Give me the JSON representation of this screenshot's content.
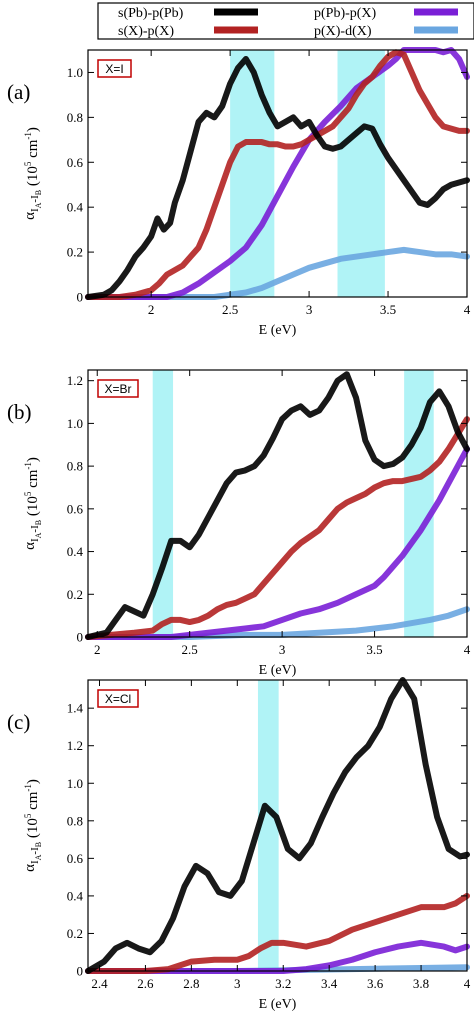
{
  "legend": [
    {
      "label": "s(Pb)-p(Pb)",
      "color": "#000000"
    },
    {
      "label": "s(X)-p(X)",
      "color": "#b22222"
    },
    {
      "label": "p(Pb)-p(X)",
      "color": "#7a1fd6"
    },
    {
      "label": "p(X)-d(X)",
      "color": "#6aa6e0"
    }
  ],
  "ylabel": {
    "alpha": "α",
    "sub1": "I",
    "sub2": "A",
    "dash": "-",
    "sub3": "I",
    "sub4": "B",
    "unit_open": " (10",
    "exp": "5",
    "unit_mid": " cm",
    "exp2": "-1",
    "close": ")"
  },
  "chart_data": [
    {
      "type": "line",
      "panel_label": "(a)",
      "tag": "X=I",
      "xlabel": "E (eV)",
      "xlim": [
        1.6,
        4.0
      ],
      "ylim": [
        0,
        1.1
      ],
      "xticks": [
        2,
        2.5,
        3,
        3.5,
        4
      ],
      "yticks": [
        0,
        0.2,
        0.4,
        0.6,
        0.8,
        1.0
      ],
      "highlight_bands": [
        [
          2.5,
          2.78
        ],
        [
          3.18,
          3.48
        ]
      ],
      "series": [
        {
          "color": "#000000",
          "x": [
            1.6,
            1.7,
            1.75,
            1.8,
            1.85,
            1.9,
            1.95,
            2.0,
            2.04,
            2.08,
            2.12,
            2.15,
            2.2,
            2.25,
            2.3,
            2.35,
            2.4,
            2.45,
            2.5,
            2.55,
            2.6,
            2.65,
            2.7,
            2.75,
            2.8,
            2.85,
            2.9,
            2.95,
            3.0,
            3.05,
            3.1,
            3.15,
            3.2,
            3.25,
            3.3,
            3.35,
            3.4,
            3.45,
            3.5,
            3.55,
            3.6,
            3.65,
            3.7,
            3.75,
            3.8,
            3.85,
            3.9,
            3.95,
            4.0
          ],
          "y": [
            0.0,
            0.01,
            0.03,
            0.07,
            0.12,
            0.18,
            0.22,
            0.27,
            0.35,
            0.3,
            0.33,
            0.42,
            0.52,
            0.65,
            0.78,
            0.82,
            0.8,
            0.85,
            0.95,
            1.02,
            1.06,
            1.0,
            0.9,
            0.82,
            0.76,
            0.78,
            0.8,
            0.76,
            0.78,
            0.72,
            0.67,
            0.66,
            0.67,
            0.7,
            0.73,
            0.76,
            0.75,
            0.68,
            0.62,
            0.57,
            0.52,
            0.47,
            0.42,
            0.41,
            0.44,
            0.48,
            0.5,
            0.51,
            0.52
          ]
        },
        {
          "color": "#b22222",
          "x": [
            1.6,
            1.8,
            1.9,
            2.0,
            2.05,
            2.1,
            2.15,
            2.2,
            2.25,
            2.3,
            2.35,
            2.4,
            2.45,
            2.5,
            2.55,
            2.6,
            2.65,
            2.7,
            2.75,
            2.8,
            2.85,
            2.9,
            2.95,
            3.0,
            3.05,
            3.1,
            3.15,
            3.2,
            3.25,
            3.3,
            3.35,
            3.4,
            3.45,
            3.5,
            3.55,
            3.6,
            3.65,
            3.7,
            3.75,
            3.8,
            3.85,
            3.9,
            3.95,
            4.0
          ],
          "y": [
            0.0,
            0.0,
            0.01,
            0.03,
            0.06,
            0.1,
            0.12,
            0.14,
            0.18,
            0.22,
            0.3,
            0.4,
            0.5,
            0.6,
            0.67,
            0.69,
            0.69,
            0.69,
            0.68,
            0.68,
            0.67,
            0.67,
            0.68,
            0.7,
            0.72,
            0.74,
            0.76,
            0.8,
            0.84,
            0.9,
            0.95,
            0.98,
            1.03,
            1.07,
            1.09,
            1.08,
            1.0,
            0.92,
            0.86,
            0.8,
            0.76,
            0.75,
            0.74,
            0.74
          ]
        },
        {
          "color": "#7a1fd6",
          "x": [
            1.6,
            2.1,
            2.2,
            2.3,
            2.4,
            2.5,
            2.6,
            2.7,
            2.8,
            2.9,
            3.0,
            3.1,
            3.2,
            3.3,
            3.4,
            3.5,
            3.55,
            3.6,
            3.65,
            3.7,
            3.75,
            3.8,
            3.85,
            3.9,
            3.95,
            4.0
          ],
          "y": [
            0.0,
            0.0,
            0.02,
            0.06,
            0.11,
            0.16,
            0.22,
            0.32,
            0.45,
            0.58,
            0.7,
            0.78,
            0.85,
            0.93,
            0.98,
            1.03,
            1.06,
            1.1,
            1.11,
            1.12,
            1.1,
            1.1,
            1.09,
            1.1,
            1.06,
            0.98
          ]
        },
        {
          "color": "#6aa6e0",
          "x": [
            1.6,
            2.4,
            2.5,
            2.6,
            2.7,
            2.8,
            2.9,
            3.0,
            3.1,
            3.2,
            3.3,
            3.4,
            3.5,
            3.6,
            3.7,
            3.8,
            3.9,
            4.0
          ],
          "y": [
            0.0,
            0.0,
            0.01,
            0.02,
            0.04,
            0.07,
            0.1,
            0.13,
            0.15,
            0.17,
            0.18,
            0.19,
            0.2,
            0.21,
            0.2,
            0.19,
            0.19,
            0.18
          ]
        }
      ]
    },
    {
      "type": "line",
      "panel_label": "(b)",
      "tag": "X=Br",
      "xlabel": "E (eV)",
      "xlim": [
        1.95,
        4.0
      ],
      "ylim": [
        0,
        1.25
      ],
      "xticks": [
        2,
        2.5,
        3,
        3.5,
        4
      ],
      "yticks": [
        0,
        0.2,
        0.4,
        0.6,
        0.8,
        1.0,
        1.2
      ],
      "highlight_bands": [
        [
          2.3,
          2.41
        ],
        [
          3.66,
          3.82
        ]
      ],
      "series": [
        {
          "color": "#000000",
          "x": [
            1.95,
            2.05,
            2.1,
            2.15,
            2.2,
            2.25,
            2.3,
            2.35,
            2.4,
            2.45,
            2.5,
            2.55,
            2.6,
            2.65,
            2.7,
            2.75,
            2.8,
            2.85,
            2.9,
            2.95,
            3.0,
            3.05,
            3.1,
            3.15,
            3.2,
            3.25,
            3.3,
            3.35,
            3.4,
            3.45,
            3.5,
            3.55,
            3.6,
            3.65,
            3.7,
            3.75,
            3.8,
            3.85,
            3.9,
            3.95,
            4.0
          ],
          "y": [
            0.0,
            0.02,
            0.08,
            0.14,
            0.12,
            0.1,
            0.2,
            0.32,
            0.45,
            0.45,
            0.42,
            0.48,
            0.56,
            0.64,
            0.72,
            0.77,
            0.78,
            0.8,
            0.85,
            0.93,
            1.02,
            1.06,
            1.08,
            1.04,
            1.06,
            1.12,
            1.2,
            1.23,
            1.12,
            0.92,
            0.83,
            0.8,
            0.81,
            0.84,
            0.9,
            0.98,
            1.1,
            1.15,
            1.08,
            0.96,
            0.88
          ]
        },
        {
          "color": "#b22222",
          "x": [
            1.95,
            2.2,
            2.3,
            2.35,
            2.4,
            2.45,
            2.5,
            2.55,
            2.6,
            2.65,
            2.7,
            2.75,
            2.8,
            2.85,
            2.9,
            2.95,
            3.0,
            3.05,
            3.1,
            3.15,
            3.2,
            3.25,
            3.3,
            3.35,
            3.4,
            3.45,
            3.5,
            3.55,
            3.6,
            3.65,
            3.7,
            3.75,
            3.8,
            3.85,
            3.9,
            3.95,
            4.0
          ],
          "y": [
            0.0,
            0.02,
            0.03,
            0.06,
            0.08,
            0.08,
            0.07,
            0.08,
            0.1,
            0.13,
            0.15,
            0.16,
            0.18,
            0.2,
            0.25,
            0.3,
            0.35,
            0.4,
            0.44,
            0.47,
            0.5,
            0.55,
            0.6,
            0.63,
            0.65,
            0.67,
            0.7,
            0.72,
            0.73,
            0.73,
            0.74,
            0.75,
            0.78,
            0.82,
            0.88,
            0.95,
            1.02
          ]
        },
        {
          "color": "#7a1fd6",
          "x": [
            1.95,
            2.4,
            2.5,
            2.6,
            2.7,
            2.8,
            2.9,
            3.0,
            3.1,
            3.2,
            3.3,
            3.4,
            3.45,
            3.5,
            3.55,
            3.6,
            3.65,
            3.7,
            3.75,
            3.8,
            3.85,
            3.9,
            3.95,
            4.0
          ],
          "y": [
            0.0,
            0.0,
            0.01,
            0.02,
            0.03,
            0.04,
            0.05,
            0.08,
            0.11,
            0.13,
            0.16,
            0.2,
            0.22,
            0.24,
            0.28,
            0.33,
            0.38,
            0.44,
            0.5,
            0.57,
            0.64,
            0.72,
            0.8,
            0.88
          ]
        },
        {
          "color": "#6aa6e0",
          "x": [
            1.95,
            2.5,
            2.8,
            3.0,
            3.2,
            3.4,
            3.6,
            3.8,
            3.9,
            4.0
          ],
          "y": [
            0.0,
            0.0,
            0.01,
            0.01,
            0.02,
            0.03,
            0.05,
            0.08,
            0.1,
            0.13
          ]
        }
      ]
    },
    {
      "type": "line",
      "panel_label": "(c)",
      "tag": "X=Cl",
      "xlabel": "E (eV)",
      "xlim": [
        2.35,
        4.0
      ],
      "ylim": [
        0,
        1.55
      ],
      "xticks": [
        2.4,
        2.6,
        2.8,
        3,
        3.2,
        3.4,
        3.6,
        3.8,
        4
      ],
      "yticks": [
        0,
        0.2,
        0.4,
        0.6,
        0.8,
        1.0,
        1.2,
        1.4
      ],
      "highlight_bands": [
        [
          3.09,
          3.18
        ]
      ],
      "series": [
        {
          "color": "#000000",
          "x": [
            2.35,
            2.42,
            2.47,
            2.52,
            2.57,
            2.62,
            2.67,
            2.72,
            2.77,
            2.82,
            2.87,
            2.92,
            2.97,
            3.02,
            3.07,
            3.12,
            3.17,
            3.22,
            3.27,
            3.32,
            3.37,
            3.42,
            3.47,
            3.52,
            3.57,
            3.62,
            3.67,
            3.72,
            3.77,
            3.82,
            3.87,
            3.92,
            3.97,
            4.0
          ],
          "y": [
            0.0,
            0.05,
            0.12,
            0.15,
            0.12,
            0.1,
            0.16,
            0.28,
            0.45,
            0.56,
            0.52,
            0.42,
            0.4,
            0.48,
            0.68,
            0.88,
            0.82,
            0.65,
            0.6,
            0.68,
            0.82,
            0.95,
            1.06,
            1.14,
            1.2,
            1.3,
            1.45,
            1.55,
            1.45,
            1.1,
            0.82,
            0.65,
            0.61,
            0.62
          ]
        },
        {
          "color": "#b22222",
          "x": [
            2.35,
            2.6,
            2.7,
            2.8,
            2.9,
            3.0,
            3.05,
            3.1,
            3.15,
            3.2,
            3.3,
            3.4,
            3.5,
            3.6,
            3.7,
            3.8,
            3.9,
            3.95,
            4.0
          ],
          "y": [
            0.0,
            0.0,
            0.01,
            0.05,
            0.06,
            0.06,
            0.08,
            0.12,
            0.15,
            0.15,
            0.13,
            0.16,
            0.22,
            0.26,
            0.3,
            0.34,
            0.34,
            0.36,
            0.4
          ]
        },
        {
          "color": "#7a1fd6",
          "x": [
            2.35,
            3.2,
            3.3,
            3.4,
            3.5,
            3.6,
            3.7,
            3.8,
            3.9,
            3.95,
            4.0
          ],
          "y": [
            0.0,
            0.0,
            0.01,
            0.03,
            0.06,
            0.1,
            0.13,
            0.15,
            0.13,
            0.11,
            0.13
          ]
        },
        {
          "color": "#6aa6e0",
          "x": [
            2.35,
            3.0,
            3.5,
            4.0
          ],
          "y": [
            0.0,
            0.0,
            0.01,
            0.02
          ]
        }
      ]
    }
  ]
}
